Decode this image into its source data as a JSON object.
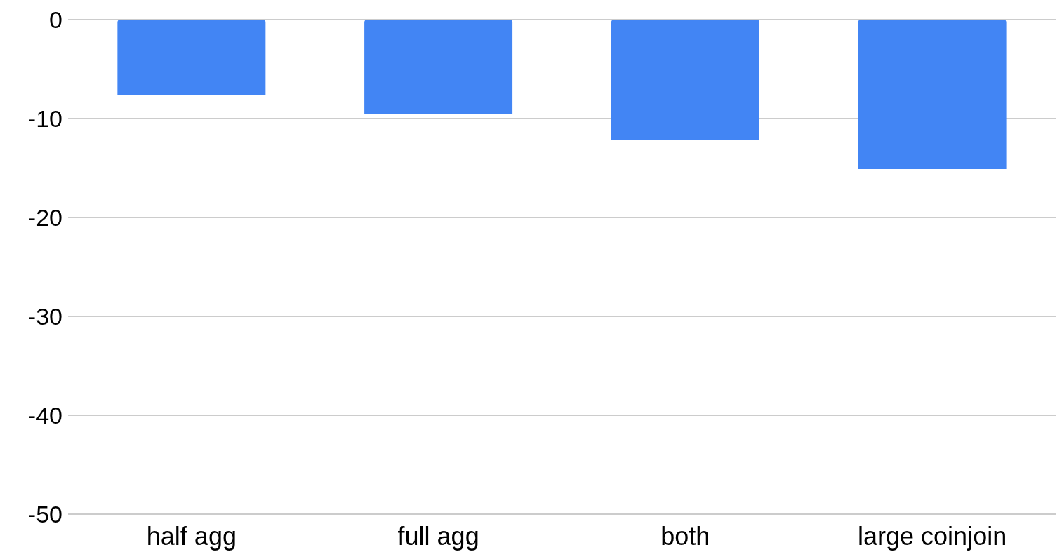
{
  "chart_data": {
    "type": "bar",
    "categories": [
      "half agg",
      "full agg",
      "both",
      "large coinjoin"
    ],
    "values": [
      -7.6,
      -9.5,
      -12.2,
      -15.1
    ],
    "color": "#4285f4",
    "ylim": [
      -50,
      0
    ],
    "yticks": [
      -50,
      -40,
      -30,
      -20,
      -10,
      0
    ],
    "grid": "y",
    "legend": false
  }
}
